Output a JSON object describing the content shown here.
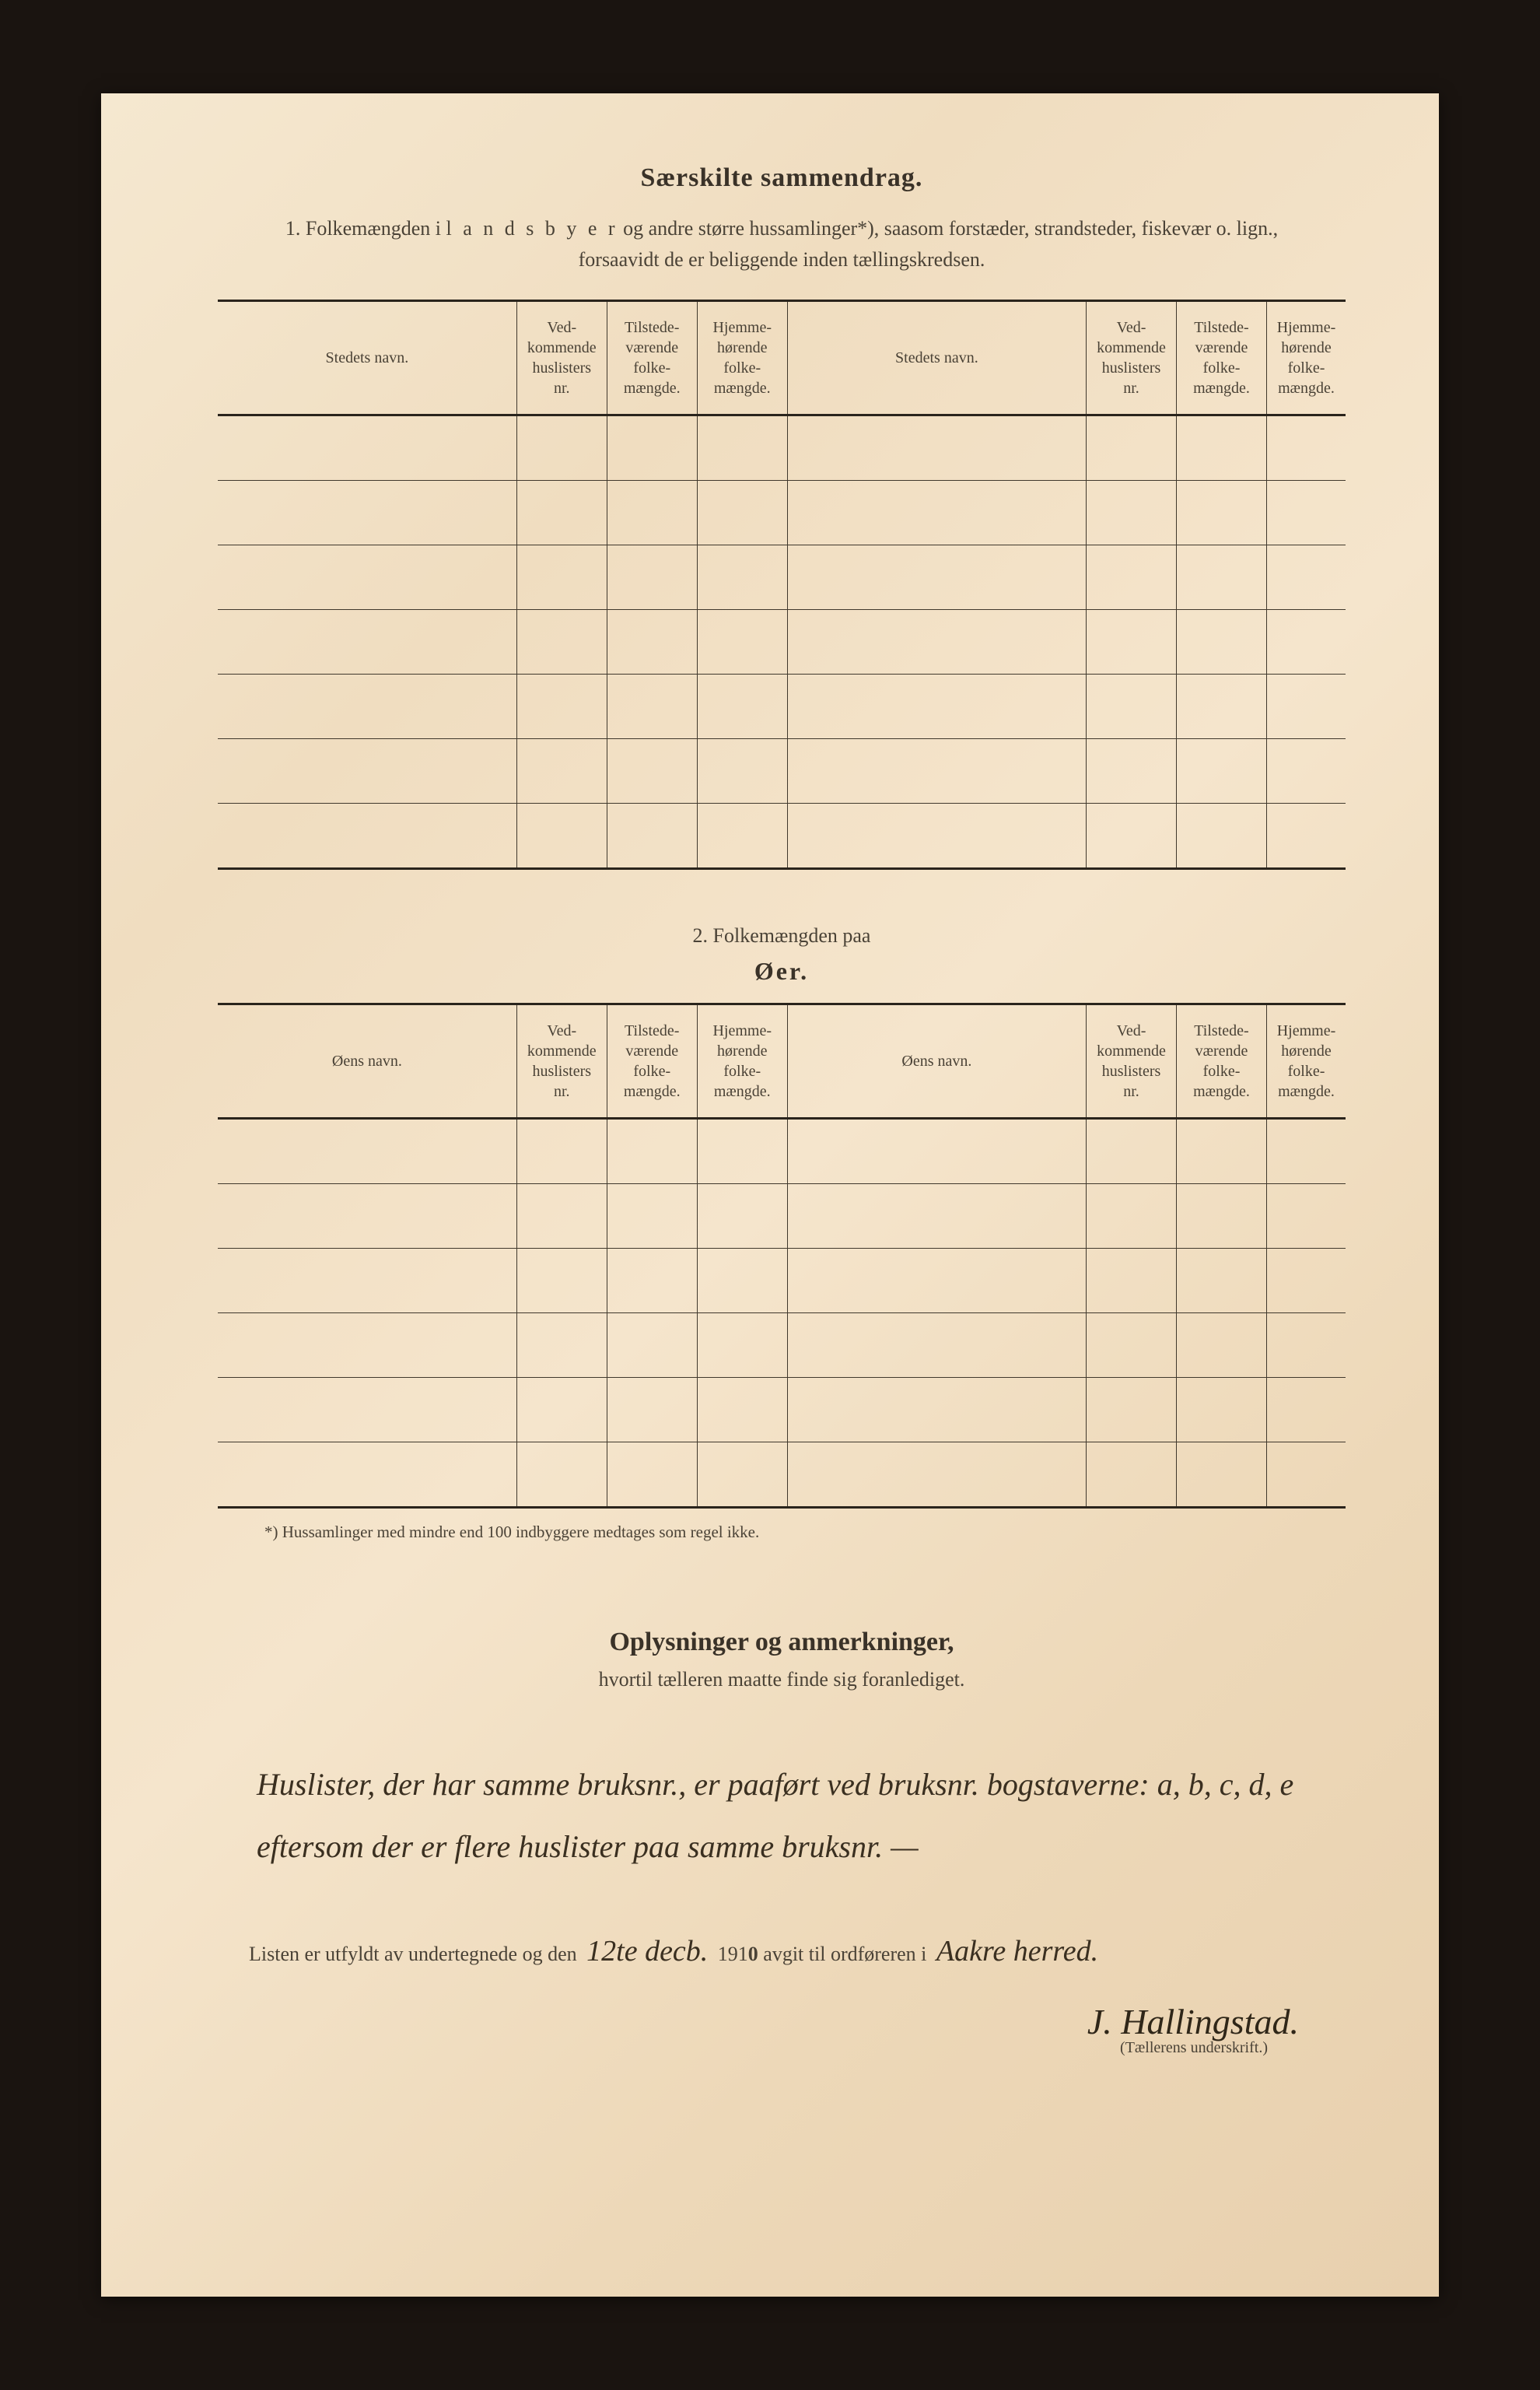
{
  "page": {
    "background_color": "#1a1410",
    "paper_color": "#f0ddc0",
    "text_color": "#3a3228",
    "border_color": "#2a241c"
  },
  "section1": {
    "title": "Særskilte sammendrag.",
    "subtitle_num": "1.",
    "subtitle_line1a": "Folkemængden i ",
    "subtitle_line1b_spaced": "l a n d s b y e r",
    "subtitle_line1c": " og andre større hussamlinger*), saasom forstæder, strandsteder, fiskevær o. lign.,",
    "subtitle_line2": "forsaavidt de er beliggende inden tællingskredsen.",
    "col_name_left": "Stedets navn.",
    "col_name_right": "Stedets navn.",
    "col_huslisters": "Ved-\nkommende\nhuslisters\nnr.",
    "col_tilstede": "Tilstede-\nværende\nfolke-\nmængde.",
    "col_hjemme": "Hjemme-\nhørende\nfolke-\nmængde.",
    "row_count": 7
  },
  "section2": {
    "heading": "2.   Folkemængden paa",
    "title": "Øer.",
    "col_name_left": "Øens navn.",
    "col_name_right": "Øens navn.",
    "col_huslisters": "Ved-\nkommende\nhuslisters\nnr.",
    "col_tilstede": "Tilstede-\nværende\nfolke-\nmængde.",
    "col_hjemme": "Hjemme-\nhørende\nfolke-\nmængde.",
    "row_count": 6
  },
  "footnote": "*) Hussamlinger med mindre end 100 indbyggere medtages som regel ikke.",
  "oplysninger": {
    "title": "Oplysninger og anmerkninger,",
    "subtitle": "hvortil tælleren maatte finde sig foranlediget.",
    "handwritten": "Huslister, der har samme bruksnr., er paaført ved bruksnr. bogstaverne: a, b, c, d, e eftersom der er flere huslister paa samme bruksnr. —"
  },
  "closing": {
    "prefix": "Listen er utfyldt av undertegnede og den ",
    "date_hand": "12te decb.",
    "mid": " 191",
    "zero": "0",
    "suffix1": " avgit til ordføreren i ",
    "place_hand": "Aakre herred.",
    "signature": "J. Hallingstad.",
    "sig_caption": "(Tællerens underskrift.)"
  }
}
